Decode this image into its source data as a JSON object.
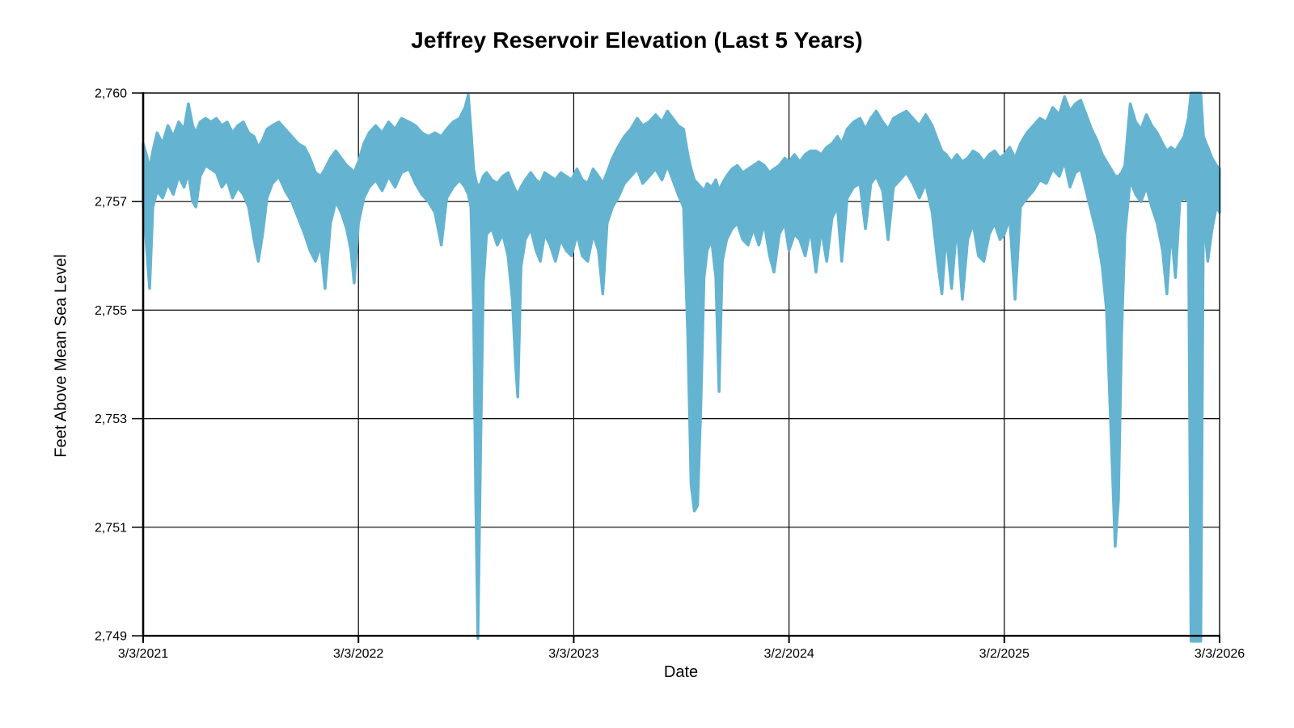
{
  "chart_data": {
    "type": "area",
    "title": "Jeffrey Reservoir Elevation (Last 5 Years)",
    "xlabel": "Date",
    "ylabel": "Feet Above Mean Sea Level",
    "x_tick_labels": [
      "3/3/2021",
      "3/3/2022",
      "3/3/2023",
      "3/2/2024",
      "3/2/2025",
      "3/3/2026"
    ],
    "y_tick_labels": [
      "2,760",
      "2,757",
      "2,755",
      "2,753",
      "2,751",
      "2,749"
    ],
    "y_tick_values": [
      2760,
      2757,
      2755,
      2753,
      2751,
      2749
    ],
    "ylim": [
      2749,
      2760
    ],
    "xlim_dates": [
      "3/3/2021",
      "3/3/2026"
    ],
    "grid": "on",
    "legend": "none",
    "y_tick_pixel_spacing": "uniform",
    "colors": {
      "fill": "#64B4D1",
      "grid": "#000000",
      "axis": "#000000",
      "text": "#000000",
      "background": "#FFFFFF"
    },
    "band_format": "each row = [x fraction of date axis 0-1, daily-range high ft, daily-range low ft]",
    "band": [
      [
        0.0,
        2758.6,
        2757.0
      ],
      [
        0.003,
        2758.3,
        2756.2
      ],
      [
        0.006,
        2757.9,
        2755.4
      ],
      [
        0.009,
        2758.4,
        2756.9
      ],
      [
        0.013,
        2758.9,
        2757.3
      ],
      [
        0.018,
        2758.6,
        2757.1
      ],
      [
        0.023,
        2759.1,
        2757.5
      ],
      [
        0.028,
        2758.8,
        2757.2
      ],
      [
        0.033,
        2759.2,
        2757.7
      ],
      [
        0.038,
        2759.0,
        2757.4
      ],
      [
        0.042,
        2759.7,
        2757.8
      ],
      [
        0.046,
        2759.1,
        2757.0
      ],
      [
        0.049,
        2758.9,
        2756.9
      ],
      [
        0.053,
        2759.2,
        2757.7
      ],
      [
        0.058,
        2759.3,
        2758.0
      ],
      [
        0.063,
        2759.2,
        2757.9
      ],
      [
        0.068,
        2759.3,
        2757.8
      ],
      [
        0.073,
        2759.1,
        2757.4
      ],
      [
        0.078,
        2759.2,
        2757.6
      ],
      [
        0.083,
        2758.9,
        2757.1
      ],
      [
        0.088,
        2759.1,
        2757.4
      ],
      [
        0.093,
        2759.2,
        2757.2
      ],
      [
        0.098,
        2758.9,
        2756.9
      ],
      [
        0.103,
        2758.8,
        2756.3
      ],
      [
        0.107,
        2758.5,
        2755.9
      ],
      [
        0.111,
        2758.7,
        2756.4
      ],
      [
        0.115,
        2759.0,
        2757.1
      ],
      [
        0.12,
        2759.1,
        2757.5
      ],
      [
        0.126,
        2759.2,
        2757.7
      ],
      [
        0.132,
        2759.0,
        2757.3
      ],
      [
        0.138,
        2758.8,
        2757.0
      ],
      [
        0.144,
        2758.6,
        2756.7
      ],
      [
        0.15,
        2758.5,
        2756.4
      ],
      [
        0.155,
        2758.2,
        2756.1
      ],
      [
        0.16,
        2757.8,
        2755.9
      ],
      [
        0.165,
        2757.7,
        2756.2
      ],
      [
        0.169,
        2757.9,
        2755.4
      ],
      [
        0.174,
        2758.2,
        2756.6
      ],
      [
        0.179,
        2758.4,
        2757.0
      ],
      [
        0.184,
        2758.2,
        2756.8
      ],
      [
        0.189,
        2758.0,
        2756.5
      ],
      [
        0.193,
        2757.9,
        2756.1
      ],
      [
        0.196,
        2757.8,
        2755.5
      ],
      [
        0.2,
        2758.1,
        2756.6
      ],
      [
        0.205,
        2758.6,
        2757.1
      ],
      [
        0.21,
        2758.9,
        2757.4
      ],
      [
        0.216,
        2759.1,
        2757.6
      ],
      [
        0.222,
        2758.9,
        2757.3
      ],
      [
        0.228,
        2759.2,
        2757.7
      ],
      [
        0.234,
        2759.0,
        2757.4
      ],
      [
        0.24,
        2759.3,
        2757.8
      ],
      [
        0.247,
        2759.2,
        2757.9
      ],
      [
        0.253,
        2759.1,
        2757.5
      ],
      [
        0.259,
        2758.9,
        2757.2
      ],
      [
        0.265,
        2758.8,
        2757.0
      ],
      [
        0.271,
        2758.9,
        2756.8
      ],
      [
        0.277,
        2758.8,
        2756.2
      ],
      [
        0.282,
        2759.0,
        2757.1
      ],
      [
        0.288,
        2759.2,
        2757.4
      ],
      [
        0.294,
        2759.3,
        2757.6
      ],
      [
        0.299,
        2759.6,
        2757.4
      ],
      [
        0.302,
        2759.95,
        2757.2
      ],
      [
        0.3045,
        2759.0,
        2756.9
      ],
      [
        0.307,
        2757.9,
        2755.0
      ],
      [
        0.309,
        2757.6,
        2751.5
      ],
      [
        0.311,
        2757.4,
        2748.95
      ],
      [
        0.3135,
        2757.5,
        2752.5
      ],
      [
        0.316,
        2757.7,
        2755.5
      ],
      [
        0.319,
        2757.8,
        2756.4
      ],
      [
        0.324,
        2757.6,
        2756.5
      ],
      [
        0.329,
        2757.5,
        2756.2
      ],
      [
        0.334,
        2757.7,
        2756.4
      ],
      [
        0.339,
        2757.8,
        2756.0
      ],
      [
        0.343,
        2757.5,
        2755.2
      ],
      [
        0.346,
        2757.3,
        2754.0
      ],
      [
        0.348,
        2757.2,
        2753.4
      ],
      [
        0.351,
        2757.4,
        2755.8
      ],
      [
        0.355,
        2757.6,
        2756.3
      ],
      [
        0.36,
        2757.8,
        2756.5
      ],
      [
        0.365,
        2757.6,
        2756.1
      ],
      [
        0.369,
        2757.5,
        2755.9
      ],
      [
        0.373,
        2757.8,
        2756.4
      ],
      [
        0.378,
        2757.7,
        2756.2
      ],
      [
        0.383,
        2757.6,
        2755.9
      ],
      [
        0.388,
        2757.8,
        2756.3
      ],
      [
        0.393,
        2757.7,
        2756.1
      ],
      [
        0.398,
        2757.6,
        2756.0
      ],
      [
        0.403,
        2757.9,
        2756.4
      ],
      [
        0.408,
        2757.6,
        2756.0
      ],
      [
        0.413,
        2757.5,
        2755.9
      ],
      [
        0.418,
        2757.9,
        2756.4
      ],
      [
        0.423,
        2757.7,
        2756.1
      ],
      [
        0.427,
        2757.5,
        2755.3
      ],
      [
        0.431,
        2757.8,
        2756.6
      ],
      [
        0.436,
        2758.2,
        2756.9
      ],
      [
        0.441,
        2758.5,
        2757.1
      ],
      [
        0.447,
        2758.8,
        2757.5
      ],
      [
        0.453,
        2759.0,
        2757.7
      ],
      [
        0.459,
        2759.3,
        2757.9
      ],
      [
        0.464,
        2759.1,
        2757.5
      ],
      [
        0.47,
        2759.2,
        2757.7
      ],
      [
        0.476,
        2759.4,
        2757.9
      ],
      [
        0.482,
        2759.2,
        2757.6
      ],
      [
        0.487,
        2759.5,
        2758.0
      ],
      [
        0.492,
        2759.3,
        2757.6
      ],
      [
        0.497,
        2759.1,
        2757.2
      ],
      [
        0.502,
        2759.0,
        2756.9
      ],
      [
        0.506,
        2758.3,
        2754.5
      ],
      [
        0.509,
        2757.9,
        2751.8
      ],
      [
        0.512,
        2757.6,
        2751.3
      ],
      [
        0.515,
        2757.5,
        2751.4
      ],
      [
        0.518,
        2757.4,
        2753.2
      ],
      [
        0.521,
        2757.3,
        2755.6
      ],
      [
        0.524,
        2757.5,
        2756.1
      ],
      [
        0.528,
        2757.4,
        2756.3
      ],
      [
        0.532,
        2757.6,
        2755.6
      ],
      [
        0.535,
        2757.3,
        2753.5
      ],
      [
        0.538,
        2757.5,
        2755.9
      ],
      [
        0.542,
        2757.7,
        2756.3
      ],
      [
        0.547,
        2757.9,
        2756.5
      ],
      [
        0.552,
        2758.0,
        2756.6
      ],
      [
        0.557,
        2757.8,
        2756.3
      ],
      [
        0.562,
        2757.9,
        2756.2
      ],
      [
        0.567,
        2758.0,
        2756.5
      ],
      [
        0.572,
        2758.1,
        2756.2
      ],
      [
        0.577,
        2758.0,
        2756.6
      ],
      [
        0.582,
        2757.8,
        2756.0
      ],
      [
        0.586,
        2757.9,
        2755.7
      ],
      [
        0.591,
        2758.0,
        2756.4
      ],
      [
        0.596,
        2758.2,
        2756.6
      ],
      [
        0.6,
        2758.1,
        2756.1
      ],
      [
        0.605,
        2758.3,
        2756.4
      ],
      [
        0.61,
        2758.1,
        2756.3
      ],
      [
        0.615,
        2758.3,
        2756.0
      ],
      [
        0.62,
        2758.4,
        2756.5
      ],
      [
        0.625,
        2758.4,
        2755.7
      ],
      [
        0.63,
        2758.3,
        2756.5
      ],
      [
        0.635,
        2758.5,
        2755.9
      ],
      [
        0.64,
        2758.6,
        2756.7
      ],
      [
        0.645,
        2758.8,
        2756.9
      ],
      [
        0.649,
        2758.6,
        2755.9
      ],
      [
        0.654,
        2759.0,
        2757.1
      ],
      [
        0.66,
        2759.2,
        2757.4
      ],
      [
        0.666,
        2759.3,
        2757.5
      ],
      [
        0.671,
        2759.0,
        2756.5
      ],
      [
        0.676,
        2759.3,
        2757.5
      ],
      [
        0.681,
        2759.5,
        2757.7
      ],
      [
        0.687,
        2759.2,
        2757.3
      ],
      [
        0.692,
        2759.0,
        2756.3
      ],
      [
        0.697,
        2759.3,
        2757.4
      ],
      [
        0.703,
        2759.4,
        2757.6
      ],
      [
        0.709,
        2759.5,
        2757.8
      ],
      [
        0.715,
        2759.3,
        2757.5
      ],
      [
        0.721,
        2759.1,
        2757.1
      ],
      [
        0.727,
        2759.4,
        2757.5
      ],
      [
        0.733,
        2759.1,
        2756.8
      ],
      [
        0.738,
        2758.7,
        2755.9
      ],
      [
        0.742,
        2758.4,
        2755.3
      ],
      [
        0.746,
        2758.3,
        2756.4
      ],
      [
        0.751,
        2758.1,
        2755.4
      ],
      [
        0.756,
        2758.3,
        2756.6
      ],
      [
        0.761,
        2758.1,
        2755.2
      ],
      [
        0.766,
        2758.2,
        2756.3
      ],
      [
        0.771,
        2758.4,
        2756.6
      ],
      [
        0.776,
        2758.3,
        2756.0
      ],
      [
        0.781,
        2758.1,
        2755.9
      ],
      [
        0.786,
        2758.3,
        2756.4
      ],
      [
        0.791,
        2758.4,
        2756.6
      ],
      [
        0.796,
        2758.2,
        2756.3
      ],
      [
        0.8,
        2758.3,
        2756.4
      ],
      [
        0.805,
        2758.5,
        2756.7
      ],
      [
        0.81,
        2758.2,
        2755.2
      ],
      [
        0.815,
        2758.6,
        2756.9
      ],
      [
        0.821,
        2758.9,
        2757.1
      ],
      [
        0.827,
        2759.1,
        2757.3
      ],
      [
        0.833,
        2759.3,
        2757.6
      ],
      [
        0.839,
        2759.2,
        2757.5
      ],
      [
        0.845,
        2759.6,
        2757.9
      ],
      [
        0.851,
        2759.4,
        2757.7
      ],
      [
        0.856,
        2759.9,
        2758.1
      ],
      [
        0.861,
        2759.5,
        2757.4
      ],
      [
        0.866,
        2759.7,
        2757.8
      ],
      [
        0.871,
        2759.8,
        2757.9
      ],
      [
        0.876,
        2759.4,
        2757.3
      ],
      [
        0.881,
        2759.0,
        2756.8
      ],
      [
        0.886,
        2758.7,
        2756.4
      ],
      [
        0.891,
        2758.3,
        2755.8
      ],
      [
        0.895,
        2758.1,
        2755.0
      ],
      [
        0.899,
        2757.9,
        2752.8
      ],
      [
        0.903,
        2757.7,
        2750.65
      ],
      [
        0.906,
        2757.7,
        2751.5
      ],
      [
        0.909,
        2757.8,
        2754.6
      ],
      [
        0.912,
        2758.0,
        2756.4
      ],
      [
        0.917,
        2759.7,
        2757.6
      ],
      [
        0.922,
        2759.2,
        2757.2
      ],
      [
        0.927,
        2759.0,
        2757.0
      ],
      [
        0.932,
        2759.4,
        2757.4
      ],
      [
        0.937,
        2759.1,
        2756.9
      ],
      [
        0.942,
        2758.9,
        2756.6
      ],
      [
        0.947,
        2758.6,
        2756.1
      ],
      [
        0.951,
        2758.4,
        2755.3
      ],
      [
        0.955,
        2758.5,
        2756.5
      ],
      [
        0.959,
        2758.4,
        2755.6
      ],
      [
        0.963,
        2758.6,
        2757.0
      ],
      [
        0.967,
        2758.8,
        2757.1
      ],
      [
        0.971,
        2759.3,
        2757.0
      ],
      [
        0.9735,
        2760.0,
        2748.9
      ],
      [
        0.9825,
        2760.0,
        2748.9
      ],
      [
        0.985,
        2758.8,
        2756.8
      ],
      [
        0.989,
        2758.5,
        2755.9
      ],
      [
        0.993,
        2758.2,
        2756.5
      ],
      [
        0.997,
        2758.0,
        2756.9
      ],
      [
        1.0,
        2757.9,
        2756.8
      ]
    ]
  }
}
